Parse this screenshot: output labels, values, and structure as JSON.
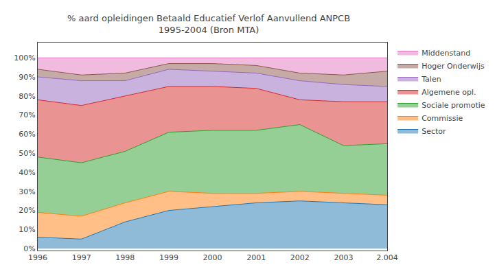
{
  "chart_data": {
    "type": "area",
    "title": "% aard opleidingen Betaald Educatief Verlof Aanvullend ANPCB\n1995-2004 (Bron MTA)",
    "categories": [
      "1996",
      "1997",
      "1998",
      "1999",
      "2000",
      "2001",
      "2002",
      "2003",
      "2.004"
    ],
    "series": [
      {
        "name": "Sector",
        "values": [
          6,
          5,
          14,
          20,
          22,
          24,
          25,
          24,
          23
        ]
      },
      {
        "name": "Commissie",
        "values": [
          13,
          12,
          10,
          10,
          7,
          5,
          5,
          5,
          5
        ]
      },
      {
        "name": "Sociale promotie",
        "values": [
          29,
          28,
          27,
          31,
          33,
          33,
          35,
          25,
          27
        ]
      },
      {
        "name": "Algemene opl.",
        "values": [
          30,
          30,
          29,
          24,
          23,
          22,
          13,
          23,
          22
        ]
      },
      {
        "name": "Talen",
        "values": [
          12,
          13,
          8,
          9,
          8,
          8,
          10,
          9,
          8
        ]
      },
      {
        "name": "Hoger Onderwijs",
        "values": [
          4,
          3,
          4,
          3,
          4,
          4,
          4,
          5,
          8
        ]
      },
      {
        "name": "Middenstand",
        "values": [
          6,
          9,
          8,
          3,
          3,
          4,
          8,
          9,
          7
        ]
      }
    ],
    "stacked": true,
    "ylim": [
      -1,
      108
    ],
    "yticks": [
      {
        "value": 0,
        "label": "0%"
      },
      {
        "value": 10,
        "label": "10%"
      },
      {
        "value": 20,
        "label": "20%"
      },
      {
        "value": 30,
        "label": "30%"
      },
      {
        "value": 40,
        "label": "40%"
      },
      {
        "value": 50,
        "label": "50%"
      },
      {
        "value": 60,
        "label": "60%"
      },
      {
        "value": 70,
        "label": "70%"
      },
      {
        "value": 80,
        "label": "80%"
      },
      {
        "value": 90,
        "label": "90%"
      },
      {
        "value": 100,
        "label": "100%"
      }
    ],
    "grid": false,
    "legend": "right"
  }
}
